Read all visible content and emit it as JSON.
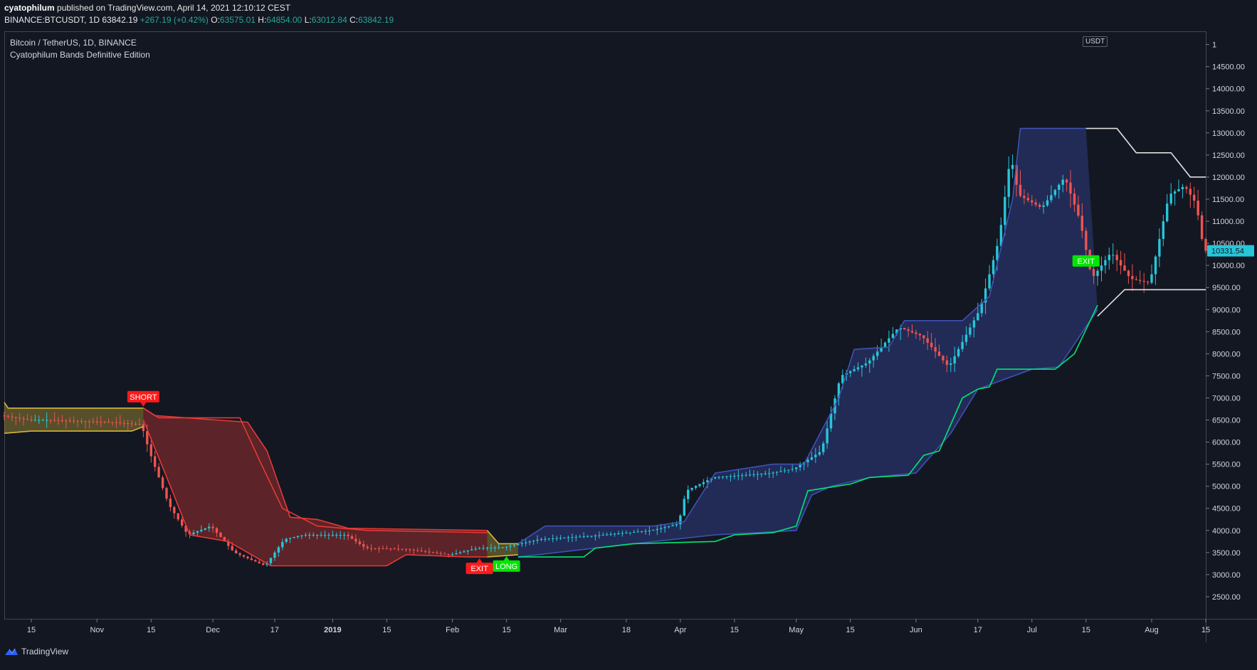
{
  "header": {
    "author": "cyatophilum",
    "published": "published on TradingView.com, April 14, 2021 12:10:12 CEST",
    "symbol_line": "BINANCE:BTCUSDT, 1D",
    "last": "63842.19",
    "change": "+267.19 (+0.42%)",
    "open_label": "O:",
    "open": "63575.01",
    "high_label": "H:",
    "high": "64854.00",
    "low_label": "L:",
    "low": "63012.84",
    "close_label": "C:",
    "close": "63842.19"
  },
  "legend": {
    "title": "Bitcoin / TetherUS, 1D, BINANCE",
    "indicator": "Cyatophilum Bands Definitive Edition"
  },
  "footer": {
    "brand": "TradingView",
    "logo_icon": "tradingview-logo-icon"
  },
  "colors": {
    "background": "#131722",
    "up": "#26c6da",
    "down": "#ef5350",
    "band_yellow": "#d4b63a",
    "band_red": "#e53935",
    "band_blue": "#3f51b5",
    "green_line": "#00e676",
    "white_line": "#e0e0e0"
  },
  "chart_data": {
    "type": "candlestick",
    "unit": "USDT",
    "last_price_label": "10331.54",
    "ylim": [
      2000,
      15300
    ],
    "y_ticks": [
      "2500.00",
      "3000.00",
      "3500.00",
      "4000.00",
      "4500.00",
      "5000.00",
      "5500.00",
      "6000.00",
      "6500.00",
      "7000.00",
      "7500.00",
      "8000.00",
      "8500.00",
      "9000.00",
      "9500.00",
      "10000.00",
      "10500.00",
      "11000.00",
      "11500.00",
      "12000.00",
      "12500.00",
      "13000.00",
      "13500.00",
      "14000.00",
      "14500.00"
    ],
    "y_tick_partial_top": "1",
    "x_ticks": [
      {
        "label": "15",
        "date": "2018-10-15"
      },
      {
        "label": "Nov",
        "date": "2018-11-01"
      },
      {
        "label": "15",
        "date": "2018-11-15"
      },
      {
        "label": "Dec",
        "date": "2018-12-01"
      },
      {
        "label": "17",
        "date": "2018-12-17"
      },
      {
        "label": "2019",
        "date": "2019-01-01"
      },
      {
        "label": "15",
        "date": "2019-01-15"
      },
      {
        "label": "Feb",
        "date": "2019-02-01"
      },
      {
        "label": "15",
        "date": "2019-02-15"
      },
      {
        "label": "Mar",
        "date": "2019-03-01"
      },
      {
        "label": "18",
        "date": "2019-03-18"
      },
      {
        "label": "Apr",
        "date": "2019-04-01"
      },
      {
        "label": "15",
        "date": "2019-04-15"
      },
      {
        "label": "May",
        "date": "2019-05-01"
      },
      {
        "label": "15",
        "date": "2019-05-15"
      },
      {
        "label": "Jun",
        "date": "2019-06-01"
      },
      {
        "label": "17",
        "date": "2019-06-17"
      },
      {
        "label": "Jul",
        "date": "2019-07-01"
      },
      {
        "label": "15",
        "date": "2019-07-15"
      },
      {
        "label": "Aug",
        "date": "2019-08-01"
      },
      {
        "label": "15",
        "date": "2019-08-15"
      }
    ],
    "x_range": [
      "2018-10-08",
      "2019-08-15"
    ],
    "price_anchors": [
      [
        "2018-10-08",
        6600
      ],
      [
        "2018-10-15",
        6500
      ],
      [
        "2018-10-20",
        6500
      ],
      [
        "2018-11-05",
        6450
      ],
      [
        "2018-11-13",
        6400
      ],
      [
        "2018-11-15",
        5800
      ],
      [
        "2018-11-20",
        4600
      ],
      [
        "2018-11-25",
        3900
      ],
      [
        "2018-12-01",
        4100
      ],
      [
        "2018-12-07",
        3500
      ],
      [
        "2018-12-15",
        3200
      ],
      [
        "2018-12-20",
        3800
      ],
      [
        "2018-12-25",
        3900
      ],
      [
        "2019-01-05",
        3900
      ],
      [
        "2019-01-10",
        3600
      ],
      [
        "2019-01-20",
        3580
      ],
      [
        "2019-02-01",
        3450
      ],
      [
        "2019-02-08",
        3600
      ],
      [
        "2019-02-15",
        3620
      ],
      [
        "2019-02-24",
        3800
      ],
      [
        "2019-03-10",
        3880
      ],
      [
        "2019-03-25",
        4000
      ],
      [
        "2019-04-01",
        4150
      ],
      [
        "2019-04-03",
        4900
      ],
      [
        "2019-04-10",
        5200
      ],
      [
        "2019-04-25",
        5300
      ],
      [
        "2019-05-01",
        5400
      ],
      [
        "2019-05-08",
        5800
      ],
      [
        "2019-05-13",
        7500
      ],
      [
        "2019-05-20",
        7800
      ],
      [
        "2019-05-28",
        8600
      ],
      [
        "2019-06-03",
        8400
      ],
      [
        "2019-06-10",
        7700
      ],
      [
        "2019-06-18",
        9000
      ],
      [
        "2019-06-23",
        10600
      ],
      [
        "2019-06-26",
        12500
      ],
      [
        "2019-06-28",
        11600
      ],
      [
        "2019-07-04",
        11300
      ],
      [
        "2019-07-10",
        12000
      ],
      [
        "2019-07-14",
        11000
      ],
      [
        "2019-07-17",
        9700
      ],
      [
        "2019-07-22",
        10300
      ],
      [
        "2019-07-27",
        9700
      ],
      [
        "2019-08-01",
        9600
      ],
      [
        "2019-08-06",
        11600
      ],
      [
        "2019-08-10",
        11800
      ],
      [
        "2019-08-13",
        11400
      ],
      [
        "2019-08-15",
        10331
      ]
    ],
    "bands": {
      "yellow_upper": [
        [
          "2018-10-08",
          6900
        ],
        [
          "2018-10-09",
          6770
        ],
        [
          "2018-11-13",
          6770
        ]
      ],
      "yellow_lower": [
        [
          "2018-10-08",
          6200
        ],
        [
          "2018-10-15",
          6250
        ],
        [
          "2018-11-10",
          6250
        ],
        [
          "2018-11-13",
          6350
        ]
      ],
      "red_upper": [
        [
          "2018-11-13",
          6770
        ],
        [
          "2018-11-16",
          6600
        ],
        [
          "2018-12-10",
          6450
        ],
        [
          "2018-12-15",
          5800
        ],
        [
          "2018-12-21",
          4300
        ],
        [
          "2018-12-28",
          4250
        ],
        [
          "2019-01-05",
          4050
        ],
        [
          "2019-02-10",
          4000
        ]
      ],
      "red_mid": [
        [
          "2018-11-13",
          6770
        ],
        [
          "2018-11-17",
          6550
        ],
        [
          "2018-12-08",
          6550
        ],
        [
          "2018-12-13",
          5600
        ],
        [
          "2018-12-19",
          4500
        ],
        [
          "2018-12-28",
          4100
        ],
        [
          "2019-01-10",
          4000
        ],
        [
          "2019-02-10",
          3950
        ]
      ],
      "red_lower": [
        [
          "2018-11-13",
          6500
        ],
        [
          "2018-11-20",
          5000
        ],
        [
          "2018-11-25",
          3900
        ],
        [
          "2018-12-05",
          3750
        ],
        [
          "2018-12-16",
          3200
        ],
        [
          "2019-01-15",
          3200
        ],
        [
          "2019-01-20",
          3450
        ],
        [
          "2019-02-05",
          3400
        ],
        [
          "2019-02-10",
          3400
        ]
      ],
      "yellow2_upper": [
        [
          "2019-02-10",
          4000
        ],
        [
          "2019-02-13",
          3700
        ],
        [
          "2019-02-18",
          3700
        ]
      ],
      "yellow2_lower": [
        [
          "2019-02-10",
          3400
        ],
        [
          "2019-02-18",
          3450
        ]
      ],
      "blue_upper": [
        [
          "2019-02-18",
          3700
        ],
        [
          "2019-02-25",
          4100
        ],
        [
          "2019-03-25",
          4100
        ],
        [
          "2019-04-02",
          4200
        ],
        [
          "2019-04-10",
          5300
        ],
        [
          "2019-04-25",
          5500
        ],
        [
          "2019-05-03",
          5500
        ],
        [
          "2019-05-12",
          7000
        ],
        [
          "2019-05-16",
          8100
        ],
        [
          "2019-05-25",
          8150
        ],
        [
          "2019-05-29",
          8750
        ],
        [
          "2019-06-13",
          8750
        ],
        [
          "2019-06-20",
          9300
        ],
        [
          "2019-06-26",
          11500
        ],
        [
          "2019-06-28",
          13100
        ],
        [
          "2019-07-15",
          13100
        ]
      ],
      "blue_lower": [
        [
          "2019-02-18",
          3400
        ],
        [
          "2019-03-20",
          3700
        ],
        [
          "2019-04-10",
          3900
        ],
        [
          "2019-05-01",
          4000
        ],
        [
          "2019-05-05",
          4800
        ],
        [
          "2019-05-10",
          5000
        ],
        [
          "2019-05-20",
          5200
        ],
        [
          "2019-06-01",
          5300
        ],
        [
          "2019-06-10",
          6200
        ],
        [
          "2019-06-17",
          7200
        ],
        [
          "2019-07-01",
          7650
        ],
        [
          "2019-07-08",
          7700
        ],
        [
          "2019-07-18",
          9000
        ]
      ],
      "green_line": [
        [
          "2019-02-18",
          3400
        ],
        [
          "2019-03-07",
          3400
        ],
        [
          "2019-03-10",
          3600
        ],
        [
          "2019-03-20",
          3700
        ],
        [
          "2019-04-10",
          3750
        ],
        [
          "2019-04-15",
          3900
        ],
        [
          "2019-04-25",
          3950
        ],
        [
          "2019-05-01",
          4100
        ],
        [
          "2019-05-04",
          4900
        ],
        [
          "2019-05-15",
          5050
        ],
        [
          "2019-05-20",
          5200
        ],
        [
          "2019-05-30",
          5250
        ],
        [
          "2019-06-03",
          5700
        ],
        [
          "2019-06-07",
          5800
        ],
        [
          "2019-06-13",
          7000
        ],
        [
          "2019-06-17",
          7200
        ],
        [
          "2019-06-20",
          7250
        ],
        [
          "2019-06-22",
          7650
        ],
        [
          "2019-07-07",
          7650
        ],
        [
          "2019-07-12",
          8000
        ],
        [
          "2019-07-18",
          9100
        ]
      ],
      "white_line": [
        [
          "2019-07-15",
          13100
        ],
        [
          "2019-07-23",
          13100
        ],
        [
          "2019-07-28",
          12550
        ],
        [
          "2019-08-06",
          12550
        ],
        [
          "2019-08-11",
          12000
        ],
        [
          "2019-08-15",
          12000
        ]
      ],
      "white_lower": [
        [
          "2019-07-18",
          8850
        ],
        [
          "2019-07-25",
          9450
        ],
        [
          "2019-08-15",
          9450
        ]
      ]
    },
    "signals": [
      {
        "label": "SHORT",
        "date": "2018-11-13",
        "price": 6770,
        "pos": "above",
        "color": "#ff1a1a"
      },
      {
        "label": "EXIT",
        "date": "2019-02-08",
        "price": 3400,
        "pos": "below",
        "color": "#ff1a1a"
      },
      {
        "label": "LONG",
        "date": "2019-02-15",
        "price": 3450,
        "pos": "below",
        "color": "#00e600"
      },
      {
        "label": "EXIT",
        "date": "2019-07-15",
        "price": 10100,
        "pos": "inline",
        "color": "#00e600"
      }
    ]
  }
}
